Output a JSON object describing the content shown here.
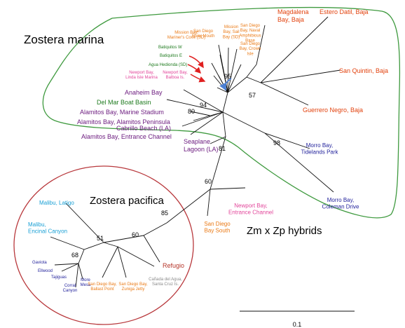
{
  "colors": {
    "marina_outline": "#3f9a3f",
    "pacifica_outline": "#b8383c",
    "branch": "#111111",
    "arrow_red": "#e02020",
    "arrow_blue": "#4a7fd4",
    "orange": "#ea7a16",
    "orange_red": "#e2420e",
    "green": "#1e7a1e",
    "purple": "#6b1a7e",
    "pink": "#e2459a",
    "blue": "#23239c",
    "cyan": "#1aa0d5",
    "darkred": "#b53529",
    "gray": "#8a8a8a"
  },
  "groups": {
    "marina": "Zostera marina",
    "pacifica": "Zostera pacifica",
    "hybrids": "Zm x Zp hybrids"
  },
  "scale_label": "0.1",
  "bootstrap": {
    "b95": "95",
    "b57": "57",
    "b94": "94",
    "b80": "80",
    "b81": "81",
    "b98": "98",
    "b60a": "60",
    "b85": "85",
    "b60b": "60",
    "b51": "51",
    "b68": "68"
  },
  "taxa": {
    "sd_river_mouth": [
      "San Diego",
      "River Mouth"
    ],
    "mission_sail": [
      "Mission",
      "Bay, Sail",
      "Bay (SD)"
    ],
    "sd_naval": [
      "San Diego",
      "Bay, Naval",
      "Amphibious",
      "Base"
    ],
    "sd_crown": [
      "San Diego",
      "Bay, Crown",
      "Isle"
    ],
    "mission_mariners": [
      "Mission Bay,",
      "Mariner's Cove (SD)"
    ],
    "batiquitos_w": [
      "Batiquitos W"
    ],
    "batiquitos_e": [
      "Batiquitos E"
    ],
    "agua_hedionda": [
      "Agua Hedionda (SD)"
    ],
    "newport_linda": [
      "Newport Bay,",
      "Linda Isle Marina"
    ],
    "newport_balboa": [
      "Newport Bay,",
      "Balboa Is."
    ],
    "magdalena": [
      "Magdalena",
      "Bay, Baja"
    ],
    "estero_datil": [
      "Estero Datil, Baja"
    ],
    "san_quintin": [
      "San Quintin, Baja"
    ],
    "guerrero_negro": [
      "Guerrero Negro, Baja"
    ],
    "anaheim": [
      "Anaheim Bay"
    ],
    "del_mar": [
      "Del Mar Boat Basin"
    ],
    "alamitos_stadium": [
      "Alamitos Bay, Marine Stadium"
    ],
    "alamitos_peninsula": [
      "Alamitos Bay, Alamitos Peninsula"
    ],
    "cabrillo": [
      "Cabrillo Beach (LA)"
    ],
    "alamitos_entrance": [
      "Alamitos Bay, Entrance Channel"
    ],
    "seaplane": [
      "Seaplane",
      "Lagoon (LA)"
    ],
    "morro_tidelands": [
      "Morro Bay,",
      "Tidelands Park"
    ],
    "morro_coleman": [
      "Morro Bay,",
      "Coleman Drive"
    ],
    "newport_entrance": [
      "Newport Bay,",
      "Entrance Channel"
    ],
    "sd_bay_south": [
      "San Diego",
      "Bay South"
    ],
    "malibu_latigo": [
      "Malibu, Latigo"
    ],
    "malibu_encinal": [
      "Malibu,",
      "Encinal Canyon"
    ],
    "refugio": [
      "Refugio"
    ],
    "gaviota": [
      "Gaviota"
    ],
    "ellwood": [
      "Ellwood"
    ],
    "tajiguas": [
      "Tajiguas"
    ],
    "corral_canyon": [
      "Corral",
      "Canyon"
    ],
    "more_mesa": [
      "More",
      "Mesa"
    ],
    "sd_ballast": [
      "San Diego Bay,",
      "Ballast Point"
    ],
    "sd_zuniga": [
      "San Diego Bay,",
      "Zuniga Jetty"
    ],
    "canada_agua": [
      "Cañada del Agua,",
      "Santa Cruz Is."
    ]
  }
}
